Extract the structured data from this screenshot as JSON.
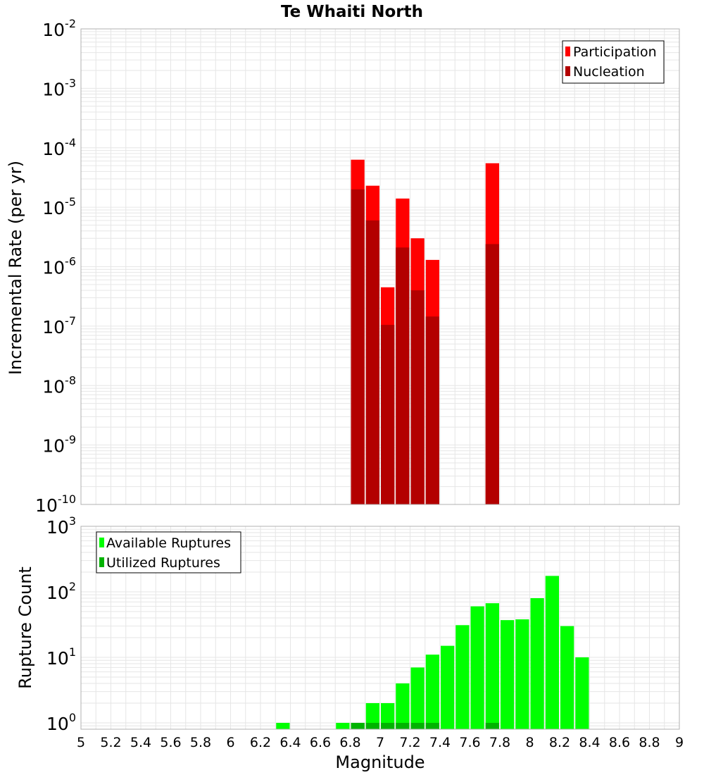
{
  "title": "Te Whaiti North",
  "xlabel": "Magnitude",
  "x_ticks": [
    "5",
    "5.2",
    "5.4",
    "5.6",
    "5.8",
    "6",
    "6.2",
    "6.4",
    "6.6",
    "6.8",
    "7",
    "7.2",
    "7.4",
    "7.6",
    "7.8",
    "8",
    "8.2",
    "8.4",
    "8.6",
    "8.8",
    "9"
  ],
  "colors": {
    "participation": "#ff0000",
    "nucleation": "#b30000",
    "available": "#00ff00",
    "utilized": "#00b300",
    "grid": "#e6e6e6",
    "frame": "#b0b0b0"
  },
  "chart_data": [
    {
      "type": "bar",
      "ylabel": "Incremental Rate (per yr)",
      "yscale": "log",
      "xlim": [
        5,
        9
      ],
      "ylim": [
        1e-10,
        0.01
      ],
      "y_tick_exponents": [
        "-10",
        "-9",
        "-8",
        "-7",
        "-6",
        "-5",
        "-4",
        "-3",
        "-2"
      ],
      "legend": {
        "position": "top-right",
        "entries": [
          "Participation",
          "Nucleation"
        ]
      },
      "grid": true,
      "bin_width": 0.1,
      "x": [
        6.85,
        6.95,
        7.05,
        7.15,
        7.25,
        7.35,
        7.75
      ],
      "series": [
        {
          "name": "Participation",
          "values": [
            6.3e-05,
            2.3e-05,
            4.5e-07,
            1.4e-05,
            3e-06,
            1.3e-06,
            5.5e-05
          ]
        },
        {
          "name": "Nucleation",
          "values": [
            2e-05,
            6e-06,
            1.05e-07,
            2.1e-06,
            4e-07,
            1.45e-07,
            2.4e-06
          ]
        }
      ]
    },
    {
      "type": "bar",
      "ylabel": "Rupture Count",
      "yscale": "log",
      "xlim": [
        5,
        9
      ],
      "ylim": [
        0.8,
        1000
      ],
      "y_tick_exponents": [
        "0",
        "1",
        "2",
        "3"
      ],
      "legend": {
        "position": "top-left",
        "entries": [
          "Available Ruptures",
          "Utilized Ruptures"
        ]
      },
      "grid": true,
      "bin_width": 0.1,
      "x": [
        6.35,
        6.75,
        6.85,
        6.95,
        7.05,
        7.15,
        7.25,
        7.35,
        7.45,
        7.55,
        7.65,
        7.75,
        7.85,
        7.95,
        8.05,
        8.15,
        8.25,
        8.35
      ],
      "series": [
        {
          "name": "Available Ruptures",
          "values": [
            1,
            1,
            1,
            2,
            2,
            4,
            7,
            11,
            15,
            31,
            60,
            67,
            37,
            38,
            80,
            175,
            30,
            10
          ]
        },
        {
          "name": "Utilized Ruptures",
          "values": [
            0,
            0,
            1,
            1,
            1,
            1,
            1,
            1,
            0,
            0,
            0,
            1,
            0,
            0,
            0,
            0,
            0,
            0
          ]
        }
      ]
    }
  ]
}
